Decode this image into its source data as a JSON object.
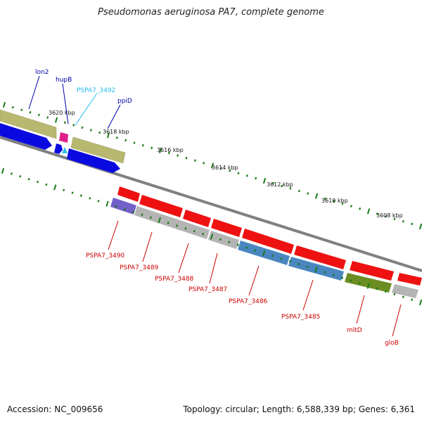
{
  "title": "Pseudomonas aeruginosa PA7, complete genome",
  "footer": {
    "accession": "Accession: NC_009656",
    "topology": "Topology: circular",
    "length": "Length: 6,588,339 bp",
    "genes": "Genes: 6,361"
  },
  "colors": {
    "backbone": "#808080",
    "tick": "#1a7a1a",
    "olive": "#b8b870",
    "blue": "#0a0ae0",
    "red": "#ee1111",
    "gray": "#b4b4b4",
    "steel": "#4a86c0",
    "green": "#6b8e23",
    "purple": "#7060c8",
    "magenta": "#e0208a",
    "cyan": "#30c0e8",
    "label_blue": "#0000aa",
    "label_cyan": "#22bbee",
    "label_red": "#cc0000"
  },
  "kbp_ticks": [
    "3620 kbp",
    "3618 kbp",
    "3616 kbp",
    "3614 kbp",
    "3612 kbp",
    "3610 kbp",
    "3608 kbp"
  ],
  "genes_top": [
    "lon2",
    "hupB",
    "PSPA7_3492",
    "ppiD"
  ],
  "genes_bottom": [
    "PSPA7_3490",
    "PSPA7_3489",
    "PSPA7_3488",
    "PSPA7_3487",
    "PSPA7_3486",
    "PSPA7_3485",
    "mltD",
    "gloB"
  ]
}
